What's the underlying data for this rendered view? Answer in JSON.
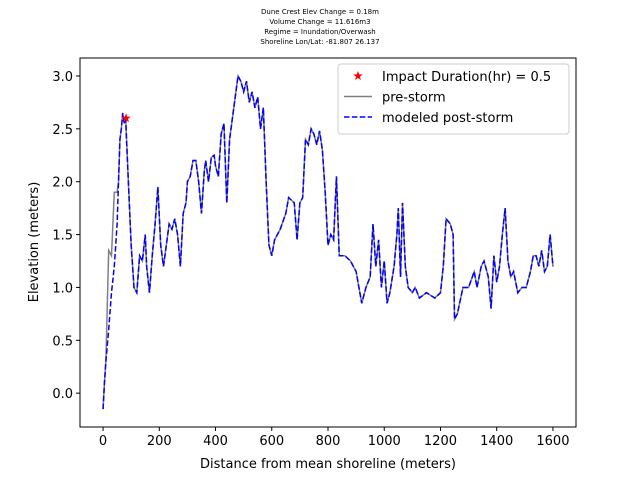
{
  "chart_data": {
    "type": "line",
    "title": [
      "Dune Crest Elev Change = 0.18m",
      "Volume Change = 11.616m3",
      "Regime = Inundation/Overwash",
      "Shoreline Lon/Lat: -81.807 26.137"
    ],
    "x_label": "Distance from mean shoreline (meters)",
    "y_label": "Elevation (meters)",
    "xlim": [
      -82,
      1682
    ],
    "ylim": [
      -0.32,
      3.17
    ],
    "xticks": [
      0,
      200,
      400,
      600,
      800,
      1000,
      1200,
      1400,
      1600
    ],
    "yticks": [
      {
        "value": 0,
        "label": "0.0"
      },
      0.5,
      {
        "value": 1,
        "label": "1.0"
      },
      1.5,
      {
        "value": 2,
        "label": "2.0"
      },
      2.5,
      {
        "value": 3,
        "label": "3.0"
      }
    ],
    "legend": "upper right",
    "x": [
      0,
      5,
      10,
      20,
      30,
      40,
      50,
      55,
      60,
      65,
      70,
      75,
      80,
      90,
      95,
      100,
      110,
      120,
      130,
      140,
      150,
      155,
      165,
      175,
      185,
      195,
      205,
      215,
      225,
      235,
      245,
      255,
      265,
      275,
      285,
      295,
      300,
      310,
      320,
      330,
      340,
      350,
      360,
      365,
      375,
      385,
      395,
      400,
      410,
      420,
      430,
      440,
      450,
      460,
      470,
      480,
      490,
      500,
      510,
      520,
      530,
      540,
      550,
      560,
      570,
      580,
      590,
      600,
      610,
      630,
      650,
      660,
      680,
      690,
      700,
      710,
      720,
      730,
      740,
      750,
      760,
      770,
      780,
      790,
      800,
      810,
      820,
      830,
      840,
      860,
      880,
      900,
      920,
      935,
      950,
      960,
      970,
      980,
      990,
      1000,
      1010,
      1020,
      1035,
      1045,
      1050,
      1058,
      1065,
      1075,
      1085,
      1100,
      1110,
      1125,
      1150,
      1180,
      1200,
      1210,
      1220,
      1235,
      1245,
      1250,
      1260,
      1280,
      1300,
      1320,
      1330,
      1345,
      1355,
      1370,
      1380,
      1390,
      1400,
      1410,
      1420,
      1430,
      1440,
      1450,
      1460,
      1475,
      1490,
      1505,
      1520,
      1530,
      1540,
      1550,
      1560,
      1570,
      1580,
      1590,
      1600
    ],
    "series": [
      {
        "name": "Impact Duration(hr) = 0.5",
        "marker": "star",
        "color": "#ff0000",
        "x": [
          82
        ],
        "values": [
          2.6
        ]
      },
      {
        "name": "pre-storm",
        "color": "#808080",
        "dash": false,
        "values": [
          -0.15,
          0.1,
          0.3,
          1.35,
          1.3,
          1.9,
          1.9,
          2.0,
          2.4,
          2.5,
          2.65,
          2.55,
          2.62,
          2.0,
          1.7,
          1.4,
          1.0,
          0.95,
          1.3,
          1.25,
          1.5,
          1.2,
          0.95,
          1.3,
          1.6,
          1.95,
          1.4,
          1.2,
          1.4,
          1.6,
          1.55,
          1.65,
          1.5,
          1.2,
          1.7,
          1.8,
          2.0,
          2.05,
          2.2,
          2.2,
          2.0,
          1.7,
          2.1,
          2.2,
          2.0,
          2.23,
          2.25,
          2.15,
          2.05,
          2.45,
          2.55,
          1.8,
          2.4,
          2.6,
          2.8,
          3.0,
          2.95,
          2.85,
          2.95,
          2.75,
          2.85,
          2.7,
          2.8,
          2.5,
          2.7,
          2.0,
          1.4,
          1.3,
          1.45,
          1.55,
          1.7,
          1.85,
          1.8,
          1.45,
          1.8,
          1.85,
          2.4,
          2.35,
          2.5,
          2.45,
          2.35,
          2.48,
          2.3,
          1.9,
          1.4,
          1.5,
          1.45,
          2.05,
          1.3,
          1.3,
          1.25,
          1.15,
          0.85,
          1.0,
          1.1,
          1.6,
          1.2,
          1.45,
          1.0,
          1.25,
          0.85,
          0.95,
          1.2,
          1.5,
          1.75,
          1.1,
          1.8,
          1.2,
          1.0,
          0.95,
          1.0,
          0.9,
          0.95,
          0.9,
          0.95,
          1.2,
          1.65,
          1.6,
          1.5,
          0.7,
          0.75,
          1.0,
          1.0,
          1.15,
          1.0,
          1.2,
          1.25,
          1.1,
          0.8,
          1.3,
          1.05,
          1.2,
          1.5,
          1.75,
          1.25,
          1.1,
          1.15,
          0.95,
          1.0,
          1.0,
          1.15,
          1.3,
          1.3,
          1.2,
          1.35,
          1.15,
          1.2,
          1.5,
          1.2
        ]
      },
      {
        "name": "modeled post-storm",
        "color": "#0000ff",
        "dash": true,
        "values": [
          -0.15,
          0.1,
          0.3,
          0.6,
          0.95,
          1.2,
          1.6,
          2.0,
          2.4,
          2.5,
          2.65,
          2.55,
          2.62,
          2.0,
          1.7,
          1.4,
          1.0,
          0.95,
          1.3,
          1.25,
          1.5,
          1.2,
          0.95,
          1.3,
          1.6,
          1.95,
          1.4,
          1.2,
          1.4,
          1.6,
          1.55,
          1.65,
          1.5,
          1.2,
          1.7,
          1.8,
          2.0,
          2.05,
          2.2,
          2.2,
          2.0,
          1.7,
          2.1,
          2.2,
          2.0,
          2.23,
          2.25,
          2.15,
          2.05,
          2.45,
          2.55,
          1.8,
          2.4,
          2.6,
          2.8,
          3.0,
          2.95,
          2.85,
          2.95,
          2.75,
          2.85,
          2.7,
          2.8,
          2.5,
          2.7,
          2.0,
          1.4,
          1.3,
          1.45,
          1.55,
          1.7,
          1.85,
          1.8,
          1.45,
          1.8,
          1.85,
          2.4,
          2.35,
          2.5,
          2.45,
          2.35,
          2.48,
          2.3,
          1.9,
          1.4,
          1.5,
          1.45,
          2.05,
          1.3,
          1.3,
          1.25,
          1.15,
          0.85,
          1.0,
          1.1,
          1.6,
          1.2,
          1.45,
          1.0,
          1.25,
          0.85,
          0.95,
          1.2,
          1.5,
          1.75,
          1.1,
          1.8,
          1.2,
          1.0,
          0.95,
          1.0,
          0.9,
          0.95,
          0.9,
          0.95,
          1.2,
          1.65,
          1.6,
          1.5,
          0.7,
          0.75,
          1.0,
          1.0,
          1.15,
          1.0,
          1.2,
          1.25,
          1.1,
          0.8,
          1.3,
          1.05,
          1.2,
          1.5,
          1.75,
          1.25,
          1.1,
          1.15,
          0.95,
          1.0,
          1.0,
          1.15,
          1.3,
          1.3,
          1.2,
          1.35,
          1.15,
          1.2,
          1.5,
          1.2
        ]
      }
    ]
  }
}
